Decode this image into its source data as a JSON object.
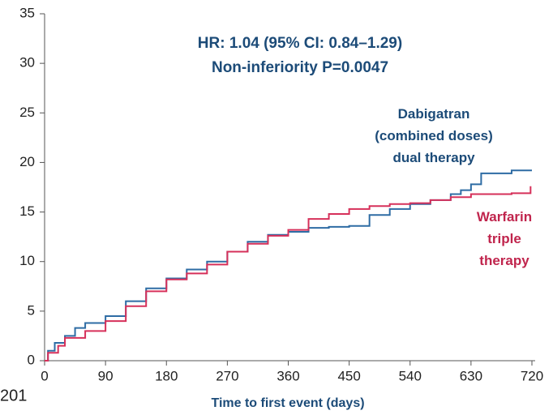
{
  "chart_data": {
    "type": "line",
    "step": true,
    "annotations": [
      "HR: 1.04 (95% CI: 0.84–1.29)",
      "Non-inferiority P=0.0047",
      "201"
    ],
    "xlabel": "Time to first event (days)",
    "xlim": [
      0,
      720
    ],
    "xticks": [
      0,
      90,
      180,
      270,
      360,
      450,
      540,
      630,
      720
    ],
    "ylim": [
      0,
      35
    ],
    "yticks": [
      0,
      5,
      10,
      15,
      20,
      25,
      30,
      35
    ],
    "grid": false,
    "series": [
      {
        "name": "Dabigatran\n(combined doses)\ndual therapy",
        "color": "#2e6ca4",
        "label_color": "#1c4b78",
        "x": [
          0,
          5,
          15,
          30,
          45,
          60,
          90,
          120,
          150,
          180,
          210,
          240,
          270,
          300,
          330,
          360,
          390,
          420,
          450,
          480,
          510,
          540,
          570,
          600,
          615,
          630,
          645,
          690,
          720
        ],
        "values": [
          0,
          1,
          1.8,
          2.5,
          3.3,
          3.8,
          4.5,
          6,
          7.3,
          8.3,
          9.2,
          10,
          11,
          12,
          12.7,
          13,
          13.4,
          13.5,
          13.6,
          14.7,
          15.3,
          15.8,
          16.2,
          16.8,
          17.2,
          17.8,
          18.9,
          19.2,
          19.2
        ]
      },
      {
        "name": "Warfarin\ntriple therapy",
        "color": "#d6305a",
        "label_color": "#c0254d",
        "x": [
          0,
          5,
          20,
          30,
          60,
          90,
          120,
          150,
          180,
          210,
          240,
          270,
          300,
          330,
          360,
          390,
          420,
          450,
          480,
          510,
          540,
          570,
          600,
          630,
          690,
          718
        ],
        "values": [
          0,
          0.8,
          1.5,
          2.3,
          3,
          4,
          5.5,
          7,
          8.2,
          8.8,
          9.7,
          11,
          11.8,
          12.6,
          13.2,
          14.3,
          14.8,
          15.3,
          15.6,
          15.8,
          15.9,
          16.2,
          16.5,
          16.8,
          16.9,
          17.6
        ]
      }
    ]
  }
}
